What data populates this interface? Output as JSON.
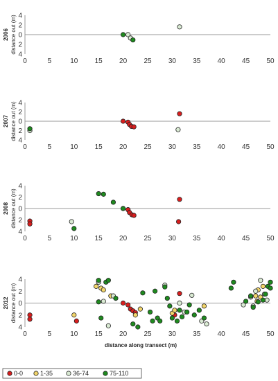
{
  "legend": {
    "entries": [
      {
        "label": "0-0",
        "color": "#d81e1e"
      },
      {
        "label": "1-35",
        "color": "#f2d56b"
      },
      {
        "label": "36-74",
        "color": "#d9ead3"
      },
      {
        "label": "75-110",
        "color": "#1f8a1f"
      }
    ],
    "placement": "bottom-left"
  },
  "chart_data": [
    {
      "type": "scatter",
      "year_label": "2006",
      "ylabel": "distance out (m)",
      "xlabel": "",
      "xlim": [
        0,
        50
      ],
      "ylim": [
        -4,
        4
      ],
      "xticks": [
        "0",
        "5",
        "10",
        "15",
        "20",
        "25",
        "30",
        "35",
        "40",
        "45",
        "50"
      ],
      "yticks": [
        "4",
        "2",
        "0",
        "2",
        "4"
      ],
      "series": [
        {
          "name": "36-74",
          "color": "#d9ead3",
          "points": [
            [
              21,
              0
            ],
            [
              21.5,
              -0.7
            ],
            [
              31.5,
              1.6
            ]
          ]
        },
        {
          "name": "75-110",
          "color": "#1f8a1f",
          "points": [
            [
              20,
              0
            ],
            [
              22,
              -1.1
            ]
          ]
        }
      ]
    },
    {
      "type": "scatter",
      "year_label": "2007",
      "ylabel": "distance out (m)",
      "xlabel": "",
      "xlim": [
        0,
        50
      ],
      "ylim": [
        -4,
        4
      ],
      "xticks": [
        "0",
        "5",
        "10",
        "15",
        "20",
        "25",
        "30",
        "35",
        "40",
        "45",
        "50"
      ],
      "yticks": [
        "4",
        "2",
        "0",
        "2",
        "4"
      ],
      "series": [
        {
          "name": "0-0",
          "color": "#d81e1e",
          "points": [
            [
              20,
              0
            ],
            [
              21,
              -0.2
            ],
            [
              21.3,
              -0.7
            ],
            [
              21.7,
              -1.1
            ],
            [
              22.2,
              -1.2
            ],
            [
              31.5,
              1.6
            ]
          ]
        },
        {
          "name": "36-74",
          "color": "#d9ead3",
          "points": [
            [
              1,
              -2
            ],
            [
              31.2,
              -1.8
            ]
          ]
        },
        {
          "name": "75-110",
          "color": "#1f8a1f",
          "points": [
            [
              1,
              -1.6
            ]
          ]
        }
      ]
    },
    {
      "type": "scatter",
      "year_label": "2008",
      "ylabel": "distance out (m)",
      "xlabel": "",
      "xlim": [
        0,
        50
      ],
      "ylim": [
        -4,
        4
      ],
      "xticks": [
        "0",
        "5",
        "10",
        "15",
        "20",
        "25",
        "30",
        "35",
        "40",
        "45",
        "50"
      ],
      "yticks": [
        "4",
        "2",
        "0",
        "2",
        "4"
      ],
      "series": [
        {
          "name": "0-0",
          "color": "#d81e1e",
          "points": [
            [
              1,
              -2.2
            ],
            [
              1,
              -2.7
            ],
            [
              21,
              -0.2
            ],
            [
              21.3,
              -0.7
            ],
            [
              21.8,
              -1.1
            ],
            [
              22.2,
              -1.2
            ],
            [
              31.5,
              1.6
            ],
            [
              31.3,
              -2.3
            ]
          ]
        },
        {
          "name": "36-74",
          "color": "#d9ead3",
          "points": [
            [
              9.5,
              -2.3
            ],
            [
              20,
              0
            ]
          ]
        },
        {
          "name": "75-110",
          "color": "#1f8a1f",
          "points": [
            [
              10,
              -3.5
            ],
            [
              15,
              2.6
            ],
            [
              16,
              2.5
            ],
            [
              18,
              1.1
            ],
            [
              20,
              0
            ]
          ]
        }
      ]
    },
    {
      "type": "scatter",
      "year_label": "2012",
      "ylabel": "distance out (m)",
      "xlabel": "distance along transect (m)",
      "xlim": [
        0,
        50
      ],
      "ylim": [
        -4,
        4
      ],
      "xticks": [
        "0",
        "5",
        "10",
        "15",
        "20",
        "25",
        "30",
        "35",
        "40",
        "45",
        "50"
      ],
      "yticks": [
        "4",
        "2",
        "0",
        "2",
        "4"
      ],
      "series": [
        {
          "name": "0-0",
          "color": "#d81e1e",
          "points": [
            [
              1,
              -2
            ],
            [
              1,
              -2.7
            ],
            [
              10.5,
              -3
            ],
            [
              20,
              0
            ],
            [
              21,
              -0.3
            ],
            [
              21.5,
              -1
            ],
            [
              22,
              -1.3
            ],
            [
              22.5,
              -1.6
            ],
            [
              31.5,
              1.6
            ],
            [
              30.5,
              -2
            ]
          ]
        },
        {
          "name": "1-35",
          "color": "#f2d56b",
          "points": [
            [
              10,
              -2
            ],
            [
              14.5,
              2.8
            ],
            [
              15.5,
              2.5
            ],
            [
              16,
              2.2
            ],
            [
              17.5,
              1.2
            ],
            [
              22.5,
              -2
            ],
            [
              23.5,
              -1
            ],
            [
              30,
              -1.7
            ],
            [
              30.5,
              -1.2
            ],
            [
              36.5,
              -0.5
            ],
            [
              47,
              1.2
            ],
            [
              47.5,
              2.2
            ],
            [
              48,
              1
            ],
            [
              48.5,
              2.8
            ],
            [
              47.3,
              0.3
            ]
          ]
        },
        {
          "name": "36-74",
          "color": "#d9ead3",
          "points": [
            [
              15,
              3.5
            ],
            [
              16,
              0.3
            ],
            [
              17,
              -3.8
            ],
            [
              18,
              1.2
            ],
            [
              28.5,
              3
            ],
            [
              31.5,
              0
            ],
            [
              32.5,
              -1.5
            ],
            [
              34,
              1.3
            ],
            [
              36,
              -3
            ],
            [
              37,
              -3.5
            ],
            [
              44.5,
              -0.3
            ],
            [
              46,
              1
            ],
            [
              46.5,
              -0.5
            ],
            [
              47,
              2
            ],
            [
              48,
              3.8
            ],
            [
              48.8,
              1.5
            ],
            [
              49.3,
              0.5
            ]
          ]
        },
        {
          "name": "75-110",
          "color": "#1f8a1f",
          "points": [
            [
              15,
              3.8
            ],
            [
              15,
              0.2
            ],
            [
              15.5,
              -2.5
            ],
            [
              16.5,
              3.5
            ],
            [
              17,
              3.8
            ],
            [
              18.5,
              0.8
            ],
            [
              22,
              -3.5
            ],
            [
              23,
              -4
            ],
            [
              24,
              1.7
            ],
            [
              25.5,
              -1.5
            ],
            [
              26,
              -3
            ],
            [
              26.5,
              2
            ],
            [
              27,
              -2.5
            ],
            [
              27.5,
              -3
            ],
            [
              28.5,
              2.7
            ],
            [
              29,
              0.8
            ],
            [
              29.5,
              -0.5
            ],
            [
              30,
              -2.5
            ],
            [
              31,
              -3
            ],
            [
              31.5,
              -1.2
            ],
            [
              32,
              -2.3
            ],
            [
              33,
              -1.5
            ],
            [
              33.5,
              -0.3
            ],
            [
              34.5,
              -2
            ],
            [
              35.5,
              -1.2
            ],
            [
              36.5,
              -2.5
            ],
            [
              42,
              2.5
            ],
            [
              42.5,
              3.5
            ],
            [
              45,
              0.3
            ],
            [
              46,
              1.2
            ],
            [
              46.5,
              -0.7
            ],
            [
              47.5,
              0.2
            ],
            [
              48.5,
              0.5
            ],
            [
              49,
              1.5
            ],
            [
              49.5,
              2.8
            ],
            [
              50,
              3.5
            ],
            [
              50,
              2.5
            ]
          ]
        }
      ]
    }
  ]
}
